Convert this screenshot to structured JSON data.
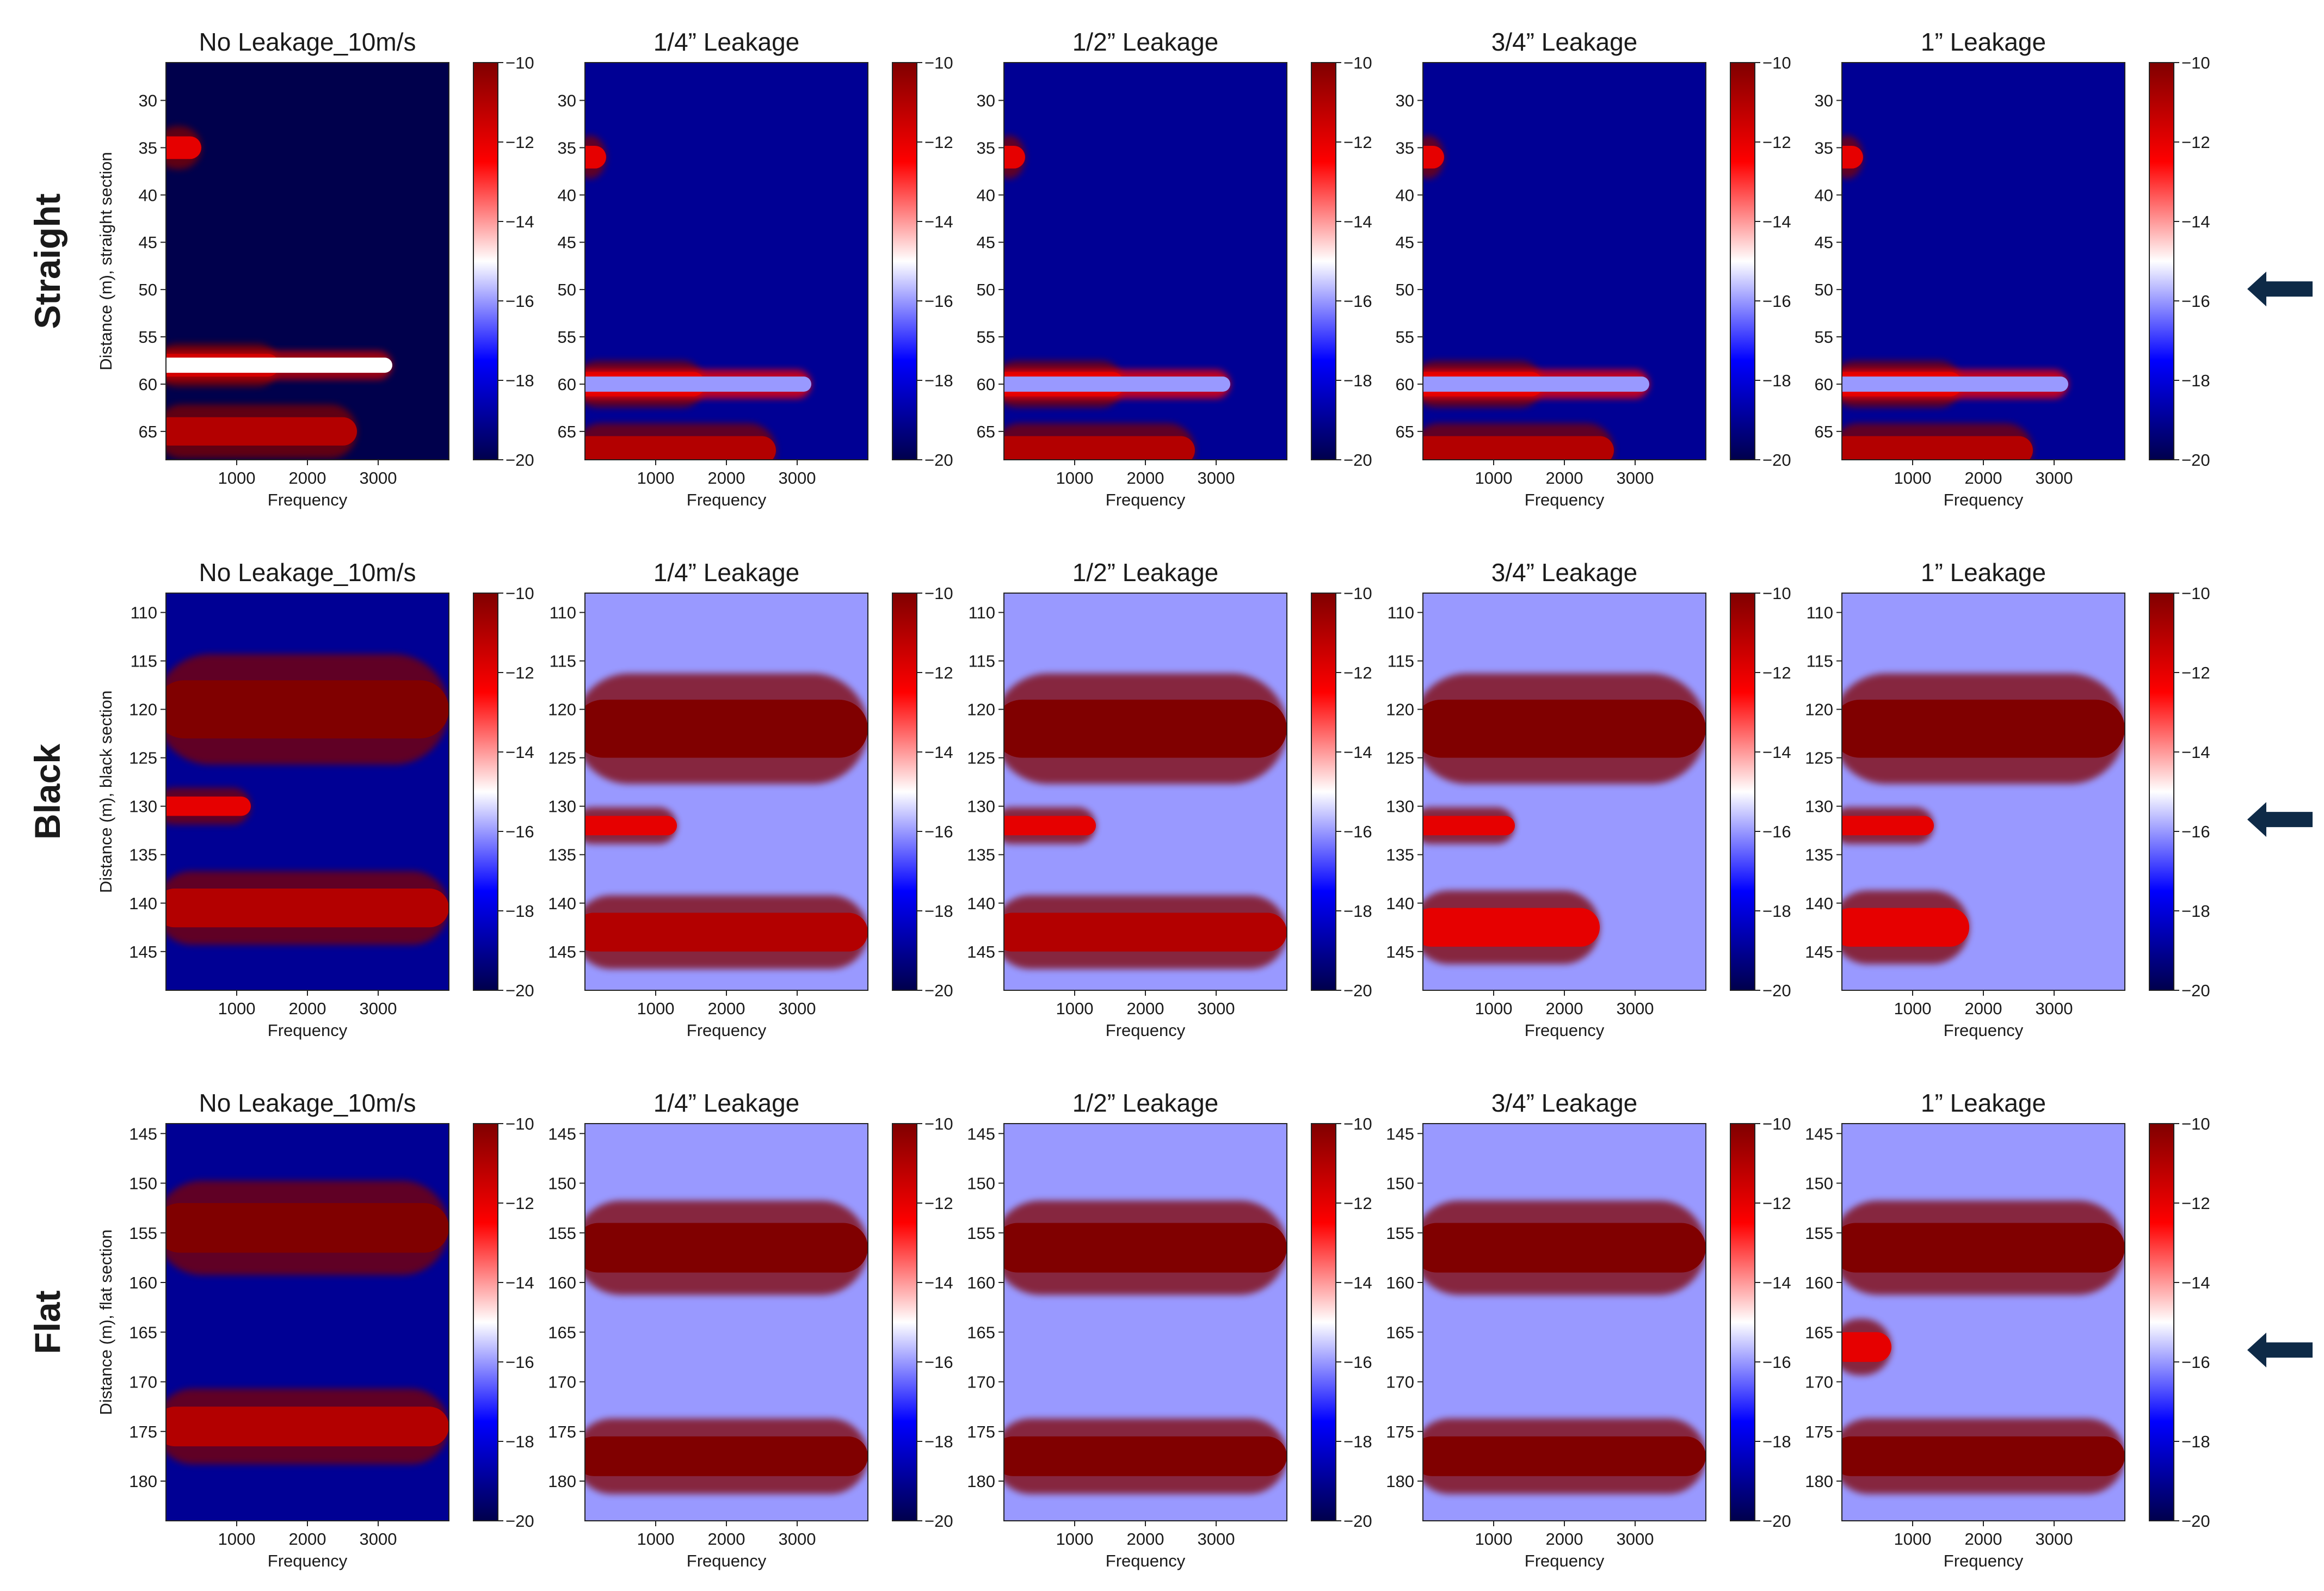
{
  "figure": {
    "rows": [
      {
        "label": "Straight",
        "ylabel": "Distance (m), straight section",
        "yticks": [
          30,
          35,
          40,
          45,
          50,
          55,
          60,
          65
        ],
        "ylim": [
          26,
          68
        ]
      },
      {
        "label": "Black",
        "ylabel": "Distance (m), black section",
        "yticks": [
          110,
          115,
          120,
          125,
          130,
          135,
          140,
          145
        ],
        "ylim": [
          108,
          149
        ]
      },
      {
        "label": "Flat",
        "ylabel": "Distance (m), flat section",
        "yticks": [
          145,
          150,
          155,
          160,
          165,
          170,
          175,
          180
        ],
        "ylim": [
          144,
          184
        ]
      }
    ],
    "columns": [
      "No Leakage_10m/s",
      "1/4” Leakage",
      "1/2” Leakage",
      "3/4” Leakage",
      "1” Leakage"
    ],
    "xlabel": "Frequency",
    "xticks": [
      "1000",
      "2000",
      "3000"
    ],
    "colorbar_ticks": [
      "−10",
      "−12",
      "−14",
      "−16",
      "−18",
      "−20"
    ],
    "arrow_icon": "arrow-left-icon"
  },
  "chart_data": {
    "type": "heatmap",
    "x": {
      "label": "Frequency",
      "range": [
        0,
        4000
      ],
      "ticks": [
        1000,
        2000,
        3000
      ]
    },
    "colorbar": {
      "range": [
        -20,
        -10
      ],
      "ticks": [
        -10,
        -12,
        -14,
        -16,
        -18,
        -20
      ],
      "colormap": "seismic",
      "low_color": "#00004c",
      "mid_color": "#ffffff",
      "high_color": "#800000"
    },
    "panels": {
      "straight": [
        {
          "column": "No Leakage_10m/s",
          "background": -20,
          "bands": [
            {
              "y": 35,
              "half_width": 1.2,
              "f_end": 500,
              "level": -12
            },
            {
              "y": 58,
              "half_width": 1.2,
              "f_end": 1600,
              "level": -12
            },
            {
              "y": 58,
              "half_width": 0.8,
              "f_end": 3200,
              "level": -15
            },
            {
              "y": 65,
              "half_width": 1.5,
              "f_end": 2700,
              "level": -11
            }
          ]
        },
        {
          "column": "1/4” Leakage",
          "background": -19,
          "bands": [
            {
              "y": 36,
              "half_width": 1.2,
              "f_end": 300,
              "level": -12
            },
            {
              "y": 60,
              "half_width": 1.3,
              "f_end": 1700,
              "level": -11
            },
            {
              "y": 60,
              "half_width": 0.8,
              "f_end": 3200,
              "level": -16
            },
            {
              "y": 67,
              "half_width": 1.5,
              "f_end": 2700,
              "level": -11
            }
          ]
        },
        {
          "column": "1/2” Leakage",
          "background": -19,
          "bands": [
            {
              "y": 36,
              "half_width": 1.2,
              "f_end": 300,
              "level": -12
            },
            {
              "y": 60,
              "half_width": 1.3,
              "f_end": 1700,
              "level": -11
            },
            {
              "y": 60,
              "half_width": 0.8,
              "f_end": 3200,
              "level": -16
            },
            {
              "y": 67,
              "half_width": 1.5,
              "f_end": 2700,
              "level": -11
            }
          ]
        },
        {
          "column": "3/4” Leakage",
          "background": -19,
          "bands": [
            {
              "y": 36,
              "half_width": 1.2,
              "f_end": 300,
              "level": -12
            },
            {
              "y": 60,
              "half_width": 1.3,
              "f_end": 1700,
              "level": -11
            },
            {
              "y": 60,
              "half_width": 0.8,
              "f_end": 3200,
              "level": -16
            },
            {
              "y": 67,
              "half_width": 1.5,
              "f_end": 2700,
              "level": -11
            }
          ]
        },
        {
          "column": "1” Leakage",
          "background": -19,
          "bands": [
            {
              "y": 36,
              "half_width": 1.2,
              "f_end": 300,
              "level": -12
            },
            {
              "y": 60,
              "half_width": 1.3,
              "f_end": 1700,
              "level": -11
            },
            {
              "y": 60,
              "half_width": 0.8,
              "f_end": 3200,
              "level": -16
            },
            {
              "y": 67,
              "half_width": 1.5,
              "f_end": 2700,
              "level": -11
            }
          ]
        }
      ],
      "black": [
        {
          "column": "No Leakage_10m/s",
          "background": -19,
          "bands": [
            {
              "y": 120,
              "half_width": 3,
              "f_end": 4000,
              "level": -10
            },
            {
              "y": 140.5,
              "half_width": 2,
              "f_end": 4000,
              "level": -11
            },
            {
              "y": 130,
              "half_width": 1,
              "f_end": 1200,
              "level": -12
            }
          ]
        },
        {
          "column": "1/4” Leakage",
          "background": -16,
          "bands": [
            {
              "y": 122,
              "half_width": 3,
              "f_end": 4000,
              "level": -10
            },
            {
              "y": 143,
              "half_width": 2,
              "f_end": 4000,
              "level": -11
            },
            {
              "y": 132,
              "half_width": 1,
              "f_end": 1300,
              "level": -12
            }
          ]
        },
        {
          "column": "1/2” Leakage",
          "background": -16,
          "bands": [
            {
              "y": 122,
              "half_width": 3,
              "f_end": 4000,
              "level": -10
            },
            {
              "y": 143,
              "half_width": 2,
              "f_end": 4000,
              "level": -11
            },
            {
              "y": 132,
              "half_width": 1,
              "f_end": 1300,
              "level": -12
            }
          ]
        },
        {
          "column": "3/4” Leakage",
          "background": -16,
          "bands": [
            {
              "y": 122,
              "half_width": 3,
              "f_end": 4000,
              "level": -10
            },
            {
              "y": 142.5,
              "half_width": 2,
              "f_end": 2500,
              "level": -12
            },
            {
              "y": 132,
              "half_width": 1,
              "f_end": 1300,
              "level": -12
            }
          ]
        },
        {
          "column": "1” Leakage",
          "background": -16,
          "bands": [
            {
              "y": 122,
              "half_width": 3,
              "f_end": 4000,
              "level": -10
            },
            {
              "y": 142.5,
              "half_width": 2,
              "f_end": 1800,
              "level": -12
            },
            {
              "y": 132,
              "half_width": 1,
              "f_end": 1300,
              "level": -12
            }
          ]
        }
      ],
      "flat": [
        {
          "column": "No Leakage_10m/s",
          "background": -19,
          "bands": [
            {
              "y": 154.5,
              "half_width": 2.5,
              "f_end": 4000,
              "level": -10
            },
            {
              "y": 174.5,
              "half_width": 2,
              "f_end": 4000,
              "level": -11
            }
          ]
        },
        {
          "column": "1/4” Leakage",
          "background": -16,
          "bands": [
            {
              "y": 156.5,
              "half_width": 2.5,
              "f_end": 4000,
              "level": -10
            },
            {
              "y": 177.5,
              "half_width": 2,
              "f_end": 4000,
              "level": -10
            }
          ]
        },
        {
          "column": "1/2” Leakage",
          "background": -16,
          "bands": [
            {
              "y": 156.5,
              "half_width": 2.5,
              "f_end": 4000,
              "level": -10
            },
            {
              "y": 177.5,
              "half_width": 2,
              "f_end": 4000,
              "level": -10
            }
          ]
        },
        {
          "column": "3/4” Leakage",
          "background": -16,
          "bands": [
            {
              "y": 156.5,
              "half_width": 2.5,
              "f_end": 4000,
              "level": -10
            },
            {
              "y": 177.5,
              "half_width": 2,
              "f_end": 4000,
              "level": -10
            }
          ]
        },
        {
          "column": "1” Leakage",
          "background": -16,
          "bands": [
            {
              "y": 156.5,
              "half_width": 2.5,
              "f_end": 4000,
              "level": -10
            },
            {
              "y": 177.5,
              "half_width": 2,
              "f_end": 4000,
              "level": -10
            },
            {
              "y": 166.5,
              "half_width": 1.5,
              "f_end": 700,
              "level": -12
            }
          ]
        }
      ]
    }
  }
}
